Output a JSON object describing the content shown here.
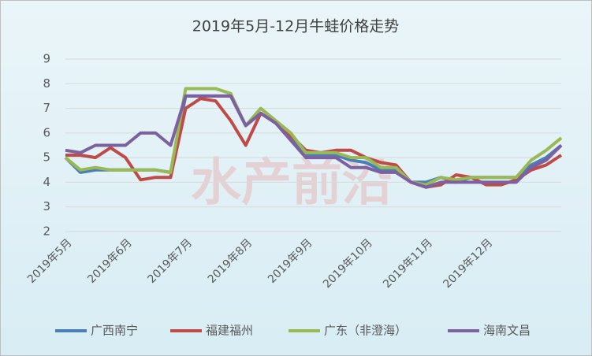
{
  "chart_data": {
    "type": "line",
    "title": "2019年5月-12月牛蛙价格走势",
    "watermark": "水产前沿",
    "categories": [
      "2019年5月",
      null,
      null,
      null,
      "2019年6月",
      null,
      null,
      null,
      "2019年7月",
      null,
      null,
      null,
      "2019年8月",
      null,
      null,
      null,
      "2019年9月",
      null,
      null,
      null,
      "2019年10月",
      null,
      null,
      null,
      "2019年11月",
      null,
      null,
      null,
      "2019年12月",
      null,
      null,
      null,
      null,
      null
    ],
    "series": [
      {
        "name": "广西南宁",
        "color": "#4a7ebb",
        "values": [
          5.0,
          4.4,
          4.5,
          4.5,
          4.5,
          4.5,
          4.5,
          4.4,
          7.5,
          7.5,
          7.5,
          7.5,
          6.3,
          6.8,
          6.4,
          5.8,
          5.1,
          5.1,
          5.1,
          4.9,
          4.8,
          4.5,
          4.5,
          4.0,
          4.0,
          4.2,
          4.0,
          4.2,
          4.2,
          4.2,
          4.2,
          4.7,
          5.0,
          5.5
        ]
      },
      {
        "name": "福建福州",
        "color": "#be4b48",
        "values": [
          5.1,
          5.1,
          5.0,
          5.4,
          5.0,
          4.1,
          4.2,
          4.2,
          7.0,
          7.4,
          7.3,
          6.5,
          5.5,
          6.8,
          6.4,
          5.9,
          5.3,
          5.2,
          5.3,
          5.3,
          5.0,
          4.8,
          4.7,
          4.0,
          3.8,
          3.9,
          4.3,
          4.2,
          3.9,
          3.9,
          4.1,
          4.5,
          4.7,
          5.1
        ]
      },
      {
        "name": "广东（非澄海）",
        "color": "#98b954",
        "values": [
          5.0,
          4.5,
          4.6,
          4.5,
          4.5,
          4.5,
          4.5,
          4.4,
          7.8,
          7.8,
          7.8,
          7.6,
          6.3,
          7.0,
          6.5,
          6.0,
          5.2,
          5.2,
          5.2,
          5.0,
          5.0,
          4.6,
          4.6,
          4.0,
          3.9,
          4.2,
          4.1,
          4.2,
          4.2,
          4.2,
          4.2,
          4.9,
          5.3,
          5.8
        ]
      },
      {
        "name": "海南文昌",
        "color": "#7d60a0",
        "values": [
          5.3,
          5.2,
          5.5,
          5.5,
          5.5,
          6.0,
          6.0,
          5.5,
          7.5,
          7.5,
          7.5,
          7.5,
          6.3,
          6.8,
          6.4,
          5.7,
          5.0,
          5.0,
          5.0,
          4.6,
          4.6,
          4.4,
          4.4,
          4.0,
          3.8,
          4.0,
          4.0,
          4.0,
          4.0,
          4.0,
          4.0,
          4.6,
          4.9,
          5.5
        ]
      }
    ],
    "ylim": [
      2,
      9
    ],
    "yticks": [
      2,
      3,
      4,
      5,
      6,
      7,
      8,
      9
    ],
    "grid": true,
    "legend": "bottom"
  }
}
